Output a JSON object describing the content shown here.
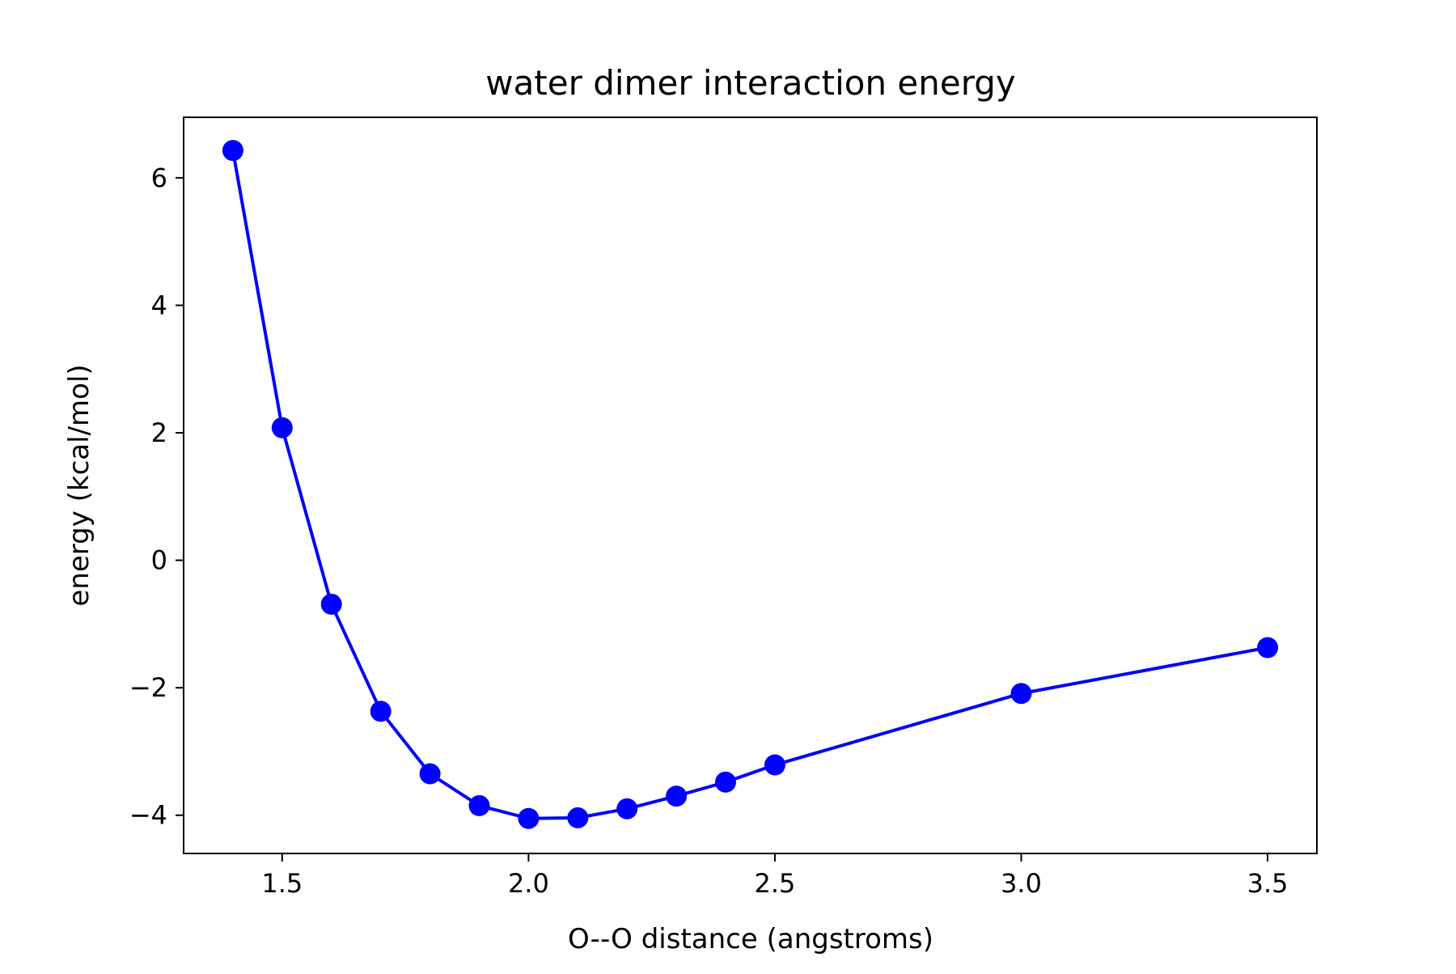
{
  "chart_data": {
    "type": "line",
    "title": "water dimer interaction energy",
    "xlabel": "O--O distance (angstroms)",
    "ylabel": "energy (kcal/mol)",
    "xlim": [
      1.3,
      3.6
    ],
    "ylim": [
      -4.6,
      6.95
    ],
    "x_ticks": [
      1.5,
      2.0,
      2.5,
      3.0,
      3.5
    ],
    "x_tick_labels": [
      "1.5",
      "2.0",
      "2.5",
      "3.0",
      "3.5"
    ],
    "y_ticks": [
      -4,
      -2,
      0,
      2,
      4,
      6
    ],
    "y_tick_labels": [
      "−4",
      "−2",
      "0",
      "2",
      "4",
      "6"
    ],
    "grid": false,
    "color": "#0000ff",
    "marker": "circle",
    "series": [
      {
        "x": [
          1.4,
          1.5,
          1.6,
          1.7,
          1.8,
          1.9,
          2.0,
          2.1,
          2.2,
          2.3,
          2.4,
          2.5,
          3.0,
          3.5
        ],
        "y": [
          6.43,
          2.08,
          -0.69,
          -2.37,
          -3.35,
          -3.85,
          -4.05,
          -4.04,
          -3.9,
          -3.7,
          -3.48,
          -3.21,
          -2.09,
          -1.37
        ]
      }
    ]
  }
}
